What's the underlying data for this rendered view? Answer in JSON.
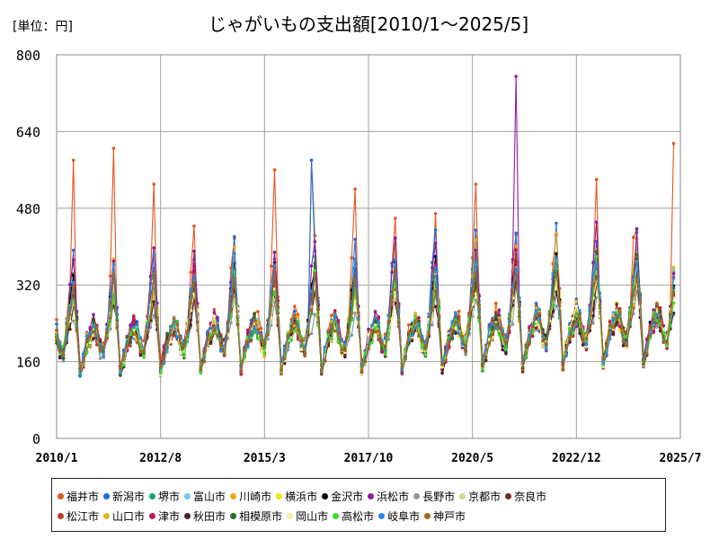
{
  "unit_label": "[単位：円]",
  "chart_data": {
    "type": "line",
    "title": "じゃがいもの支出額[2010/1～2025/5]",
    "xlabel": "",
    "ylabel": "",
    "ylim": [
      0,
      800
    ],
    "yticks": [
      0,
      160,
      320,
      480,
      640,
      800
    ],
    "x_range": [
      "2010/1",
      "2025/7"
    ],
    "xticks": [
      "2010/1",
      "2012/8",
      "2015/3",
      "2017/10",
      "2020/5",
      "2022/12",
      "2025/7"
    ],
    "grid": true,
    "legend_position": "bottom",
    "series": [
      {
        "name": "福井市",
        "color": "#e8541c",
        "peak": 1.18,
        "noise": 0.12
      },
      {
        "name": "新潟市",
        "color": "#1f6fdc",
        "peak": 1.12,
        "noise": 0.1
      },
      {
        "name": "堺市",
        "color": "#1aa37c",
        "peak": 0.98,
        "noise": 0.09
      },
      {
        "name": "富山市",
        "color": "#6ec6f0",
        "peak": 1.0,
        "noise": 0.09
      },
      {
        "name": "川崎市",
        "color": "#f0a81c",
        "peak": 1.05,
        "noise": 0.1
      },
      {
        "name": "横浜市",
        "color": "#f5e30c",
        "peak": 0.95,
        "noise": 0.09
      },
      {
        "name": "金沢市",
        "color": "#000000",
        "peak": 1.0,
        "noise": 0.07
      },
      {
        "name": "浜松市",
        "color": "#8c1f9c",
        "peak": 1.08,
        "noise": 0.11
      },
      {
        "name": "長野市",
        "color": "#8a98a6",
        "peak": 0.8,
        "noise": 0.1
      },
      {
        "name": "京都市",
        "color": "#c4df8a",
        "peak": 0.88,
        "noise": 0.08
      },
      {
        "name": "奈良市",
        "color": "#7a2b1a",
        "peak": 0.92,
        "noise": 0.09
      },
      {
        "name": "松江市",
        "color": "#c0392b",
        "peak": 0.95,
        "noise": 0.1
      },
      {
        "name": "山口市",
        "color": "#d9b81c",
        "peak": 0.92,
        "noise": 0.09
      },
      {
        "name": "津市",
        "color": "#c2185b",
        "peak": 0.97,
        "noise": 0.1
      },
      {
        "name": "秋田市",
        "color": "#4a2030",
        "peak": 0.85,
        "noise": 0.09
      },
      {
        "name": "相模原市",
        "color": "#2e6b2e",
        "peak": 0.96,
        "noise": 0.08
      },
      {
        "name": "岡山市",
        "color": "#f7f0a0",
        "peak": 0.9,
        "noise": 0.08
      },
      {
        "name": "高松市",
        "color": "#3adb2a",
        "peak": 0.93,
        "noise": 0.09
      },
      {
        "name": "岐阜市",
        "color": "#2a8ae0",
        "peak": 1.02,
        "noise": 0.09
      },
      {
        "name": "神戸市",
        "color": "#a0661e",
        "peak": 0.94,
        "noise": 0.08
      }
    ],
    "notable_points": [
      {
        "x": "2010/6",
        "y": 580
      },
      {
        "x": "2011/6",
        "y": 605
      },
      {
        "x": "2012/6",
        "y": 530
      },
      {
        "x": "2015/6",
        "y": 560
      },
      {
        "x": "2016/5",
        "y": 580
      },
      {
        "x": "2017/6",
        "y": 520
      },
      {
        "x": "2020/6",
        "y": 530
      },
      {
        "x": "2021/6",
        "y": 755
      },
      {
        "x": "2023/6",
        "y": 540
      },
      {
        "x": "2025/5",
        "y": 615
      }
    ]
  },
  "legend": {
    "row1": [
      "福井市",
      "新潟市",
      "堺市",
      "富山市",
      "川崎市",
      "横浜市",
      "金沢市",
      "浜松市",
      "長野市",
      "京都市",
      "奈良市"
    ],
    "row2": [
      "松江市",
      "山口市",
      "津市",
      "秋田市",
      "相模原市",
      "岡山市",
      "高松市",
      "岐阜市",
      "神戸市"
    ]
  }
}
